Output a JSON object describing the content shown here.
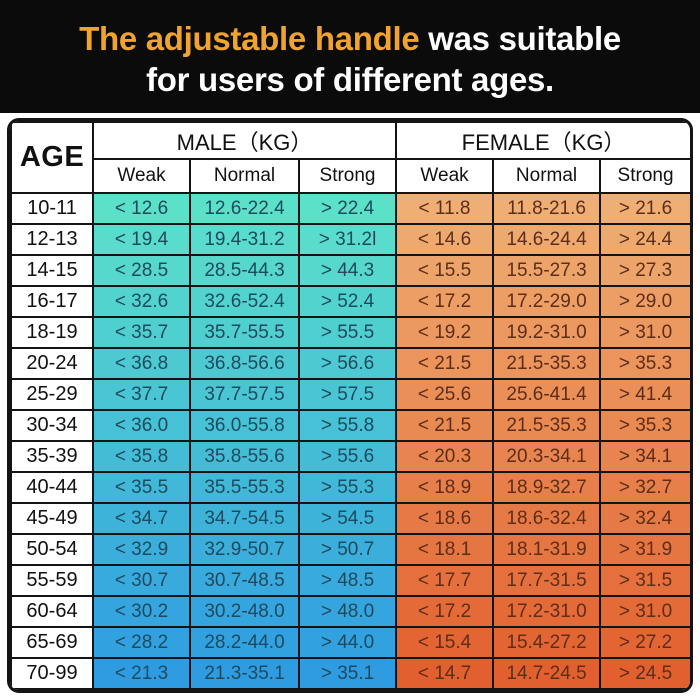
{
  "title": {
    "highlight": "The adjustable handle",
    "rest": " was suitable",
    "line2": "for users of different ages."
  },
  "chart_data": {
    "type": "table",
    "title": "The adjustable handle was suitable for users of different ages.",
    "age_header": "AGE",
    "male_header": "MALE（KG）",
    "female_header": "FEMALE（KG）",
    "sub_headers": [
      "Weak",
      "Normal",
      "Strong"
    ],
    "rows": [
      {
        "age": "10-11",
        "male": [
          "< 12.6",
          "12.6-22.4",
          "> 22.4"
        ],
        "female": [
          "< 11.8",
          "11.8-21.6",
          "> 21.6"
        ]
      },
      {
        "age": "12-13",
        "male": [
          "< 19.4",
          "19.4-31.2",
          "> 31.2l"
        ],
        "female": [
          "< 14.6",
          "14.6-24.4",
          "> 24.4"
        ]
      },
      {
        "age": "14-15",
        "male": [
          "< 28.5",
          "28.5-44.3",
          "> 44.3"
        ],
        "female": [
          "< 15.5",
          "15.5-27.3",
          "> 27.3"
        ]
      },
      {
        "age": "16-17",
        "male": [
          "< 32.6",
          "32.6-52.4",
          "> 52.4"
        ],
        "female": [
          "< 17.2",
          "17.2-29.0",
          "> 29.0"
        ]
      },
      {
        "age": "18-19",
        "male": [
          "< 35.7",
          "35.7-55.5",
          "> 55.5"
        ],
        "female": [
          "< 19.2",
          "19.2-31.0",
          "> 31.0"
        ]
      },
      {
        "age": "20-24",
        "male": [
          "< 36.8",
          "36.8-56.6",
          "> 56.6"
        ],
        "female": [
          "< 21.5",
          "21.5-35.3",
          "> 35.3"
        ]
      },
      {
        "age": "25-29",
        "male": [
          "< 37.7",
          "37.7-57.5",
          "> 57.5"
        ],
        "female": [
          "< 25.6",
          "25.6-41.4",
          "> 41.4"
        ]
      },
      {
        "age": "30-34",
        "male": [
          "< 36.0",
          "36.0-55.8",
          "> 55.8"
        ],
        "female": [
          "< 21.5",
          "21.5-35.3",
          "> 35.3"
        ]
      },
      {
        "age": "35-39",
        "male": [
          "< 35.8",
          "35.8-55.6",
          "> 55.6"
        ],
        "female": [
          "< 20.3",
          "20.3-34.1",
          "> 34.1"
        ]
      },
      {
        "age": "40-44",
        "male": [
          "< 35.5",
          "35.5-55.3",
          "> 55.3"
        ],
        "female": [
          "< 18.9",
          "18.9-32.7",
          "> 32.7"
        ]
      },
      {
        "age": "45-49",
        "male": [
          "< 34.7",
          "34.7-54.5",
          "> 54.5"
        ],
        "female": [
          "< 18.6",
          "18.6-32.4",
          "> 32.4"
        ]
      },
      {
        "age": "50-54",
        "male": [
          "< 32.9",
          "32.9-50.7",
          "> 50.7"
        ],
        "female": [
          "< 18.1",
          "18.1-31.9",
          "> 31.9"
        ]
      },
      {
        "age": "55-59",
        "male": [
          "< 30.7",
          "30.7-48.5",
          "> 48.5"
        ],
        "female": [
          "< 17.7",
          "17.7-31.5",
          "> 31.5"
        ]
      },
      {
        "age": "60-64",
        "male": [
          "< 30.2",
          "30.2-48.0",
          "> 48.0"
        ],
        "female": [
          "< 17.2",
          "17.2-31.0",
          "> 31.0"
        ]
      },
      {
        "age": "65-69",
        "male": [
          "< 28.2",
          "28.2-44.0",
          "> 44.0"
        ],
        "female": [
          "< 15.4",
          "15.4-27.2",
          "> 27.2"
        ]
      },
      {
        "age": "70-99",
        "male": [
          "< 21.3",
          "21.3-35.1",
          "> 35.1"
        ],
        "female": [
          "< 14.7",
          "14.7-24.5",
          "> 24.5"
        ]
      }
    ]
  },
  "colors": {
    "banner_bg": "#0B0B0B",
    "accent_orange": "#F0A42E",
    "male_gradient_top": "#5CE1C9",
    "male_gradient_bottom": "#2F9CE2",
    "female_gradient_top": "#EFAE73",
    "female_gradient_bottom": "#E2602F",
    "male_text": "#1E4A5E",
    "female_text": "#5E2D18",
    "border": "#141414"
  }
}
